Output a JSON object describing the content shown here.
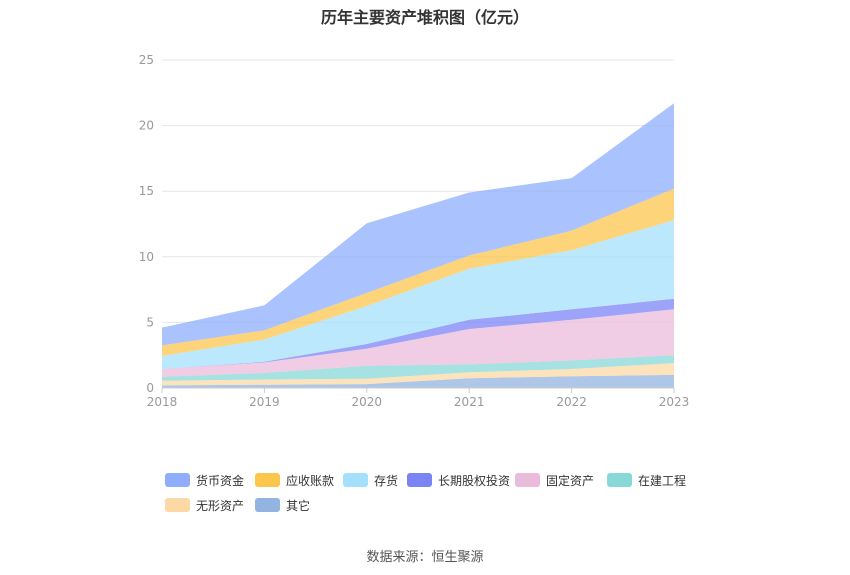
{
  "colors": {
    "货币资金": "#8eaefc",
    "应收账款": "#fcc64c",
    "存货": "#a4e0fb",
    "长期股权投资": "#7b84f5",
    "固定资产": "#ebbbdc",
    "在建工程": "#88d8d8",
    "无形资产": "#fcd9a4",
    "其它": "#93b4e0"
  },
  "chart_data": {
    "type": "area",
    "stacked": true,
    "title": "历年主要资产堆积图（亿元）",
    "xlabel": "",
    "ylabel": "",
    "categories": [
      "2018",
      "2019",
      "2020",
      "2021",
      "2022",
      "2023"
    ],
    "ylim": [
      0,
      25
    ],
    "yticks": [
      0,
      5,
      10,
      15,
      20,
      25
    ],
    "grid": true,
    "legend_position": "bottom",
    "series": [
      {
        "name": "其它",
        "values": [
          0.2,
          0.25,
          0.3,
          0.75,
          0.9,
          1.0
        ]
      },
      {
        "name": "无形资产",
        "values": [
          0.35,
          0.4,
          0.4,
          0.45,
          0.55,
          0.9
        ]
      },
      {
        "name": "在建工程",
        "values": [
          0.3,
          0.5,
          1.0,
          0.6,
          0.65,
          0.6
        ]
      },
      {
        "name": "固定资产",
        "values": [
          0.6,
          0.8,
          1.3,
          2.7,
          3.1,
          3.5
        ]
      },
      {
        "name": "长期股权投资",
        "values": [
          0.0,
          0.05,
          0.35,
          0.7,
          0.8,
          0.8
        ]
      },
      {
        "name": "存货",
        "values": [
          1.0,
          1.7,
          2.9,
          3.9,
          4.5,
          6.0
        ]
      },
      {
        "name": "应收账款",
        "values": [
          0.8,
          0.7,
          1.0,
          1.0,
          1.5,
          2.4
        ]
      },
      {
        "name": "货币资金",
        "values": [
          1.35,
          1.9,
          5.3,
          4.8,
          4.0,
          6.5
        ]
      }
    ]
  },
  "legend": {
    "items": [
      "货币资金",
      "应收账款",
      "存货",
      "长期股权投资",
      "固定资产",
      "在建工程",
      "无形资产",
      "其它"
    ]
  },
  "footer": {
    "source": "数据来源：恒生聚源"
  }
}
